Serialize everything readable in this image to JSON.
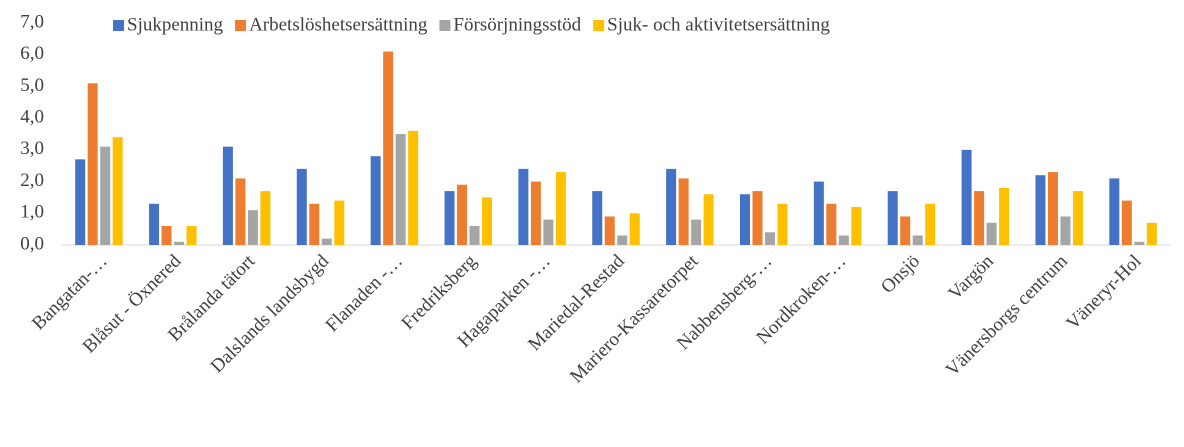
{
  "chart_data": {
    "type": "bar",
    "categories": [
      "Bangatan-…",
      "Blåsut - Öxnered",
      "Brålanda tätort",
      "Dalslands landsbygd",
      "Flanaden -…",
      "Fredriksberg",
      "Hagaparken -…",
      "Mariedal-Restad",
      "Mariero-Kassaretorpet",
      "Nabbensberg-…",
      "Nordkroken-…",
      "Onsjö",
      "Vargön",
      "Vänersborgs centrum",
      "Väneryr-Hol"
    ],
    "series": [
      {
        "name": "Sjukpenning",
        "color": "#4472c4",
        "values": [
          2.7,
          1.3,
          3.1,
          2.4,
          2.8,
          1.7,
          2.4,
          1.7,
          2.4,
          1.6,
          2.0,
          1.7,
          3.0,
          2.2,
          2.1
        ]
      },
      {
        "name": "Arbetslöshetsersättning",
        "color": "#ed7d31",
        "values": [
          5.1,
          0.6,
          2.1,
          1.3,
          6.1,
          1.9,
          2.0,
          0.9,
          2.1,
          1.7,
          1.3,
          0.9,
          1.7,
          2.3,
          1.4
        ]
      },
      {
        "name": "Försörjningsstöd",
        "color": "#a5a5a5",
        "values": [
          3.1,
          0.1,
          1.1,
          0.2,
          3.5,
          0.6,
          0.8,
          0.3,
          0.8,
          0.4,
          0.3,
          0.3,
          0.7,
          0.9,
          0.1
        ]
      },
      {
        "name": "Sjuk- och aktivitetsersättning",
        "color": "#ffc000",
        "values": [
          3.4,
          0.6,
          1.7,
          1.4,
          3.6,
          1.5,
          2.3,
          1.0,
          1.6,
          1.3,
          1.2,
          1.3,
          1.8,
          1.7,
          0.7
        ]
      }
    ],
    "ylim": [
      0,
      7
    ],
    "yticks": [
      {
        "value": 0,
        "label": "0,0"
      },
      {
        "value": 1,
        "label": "1,0"
      },
      {
        "value": 2,
        "label": "2,0"
      },
      {
        "value": 3,
        "label": "3,0"
      },
      {
        "value": 4,
        "label": "4,0"
      },
      {
        "value": 5,
        "label": "5,0"
      },
      {
        "value": 6,
        "label": "6,0"
      },
      {
        "value": 7,
        "label": "7,0"
      }
    ],
    "grid": false,
    "legend": "top"
  }
}
